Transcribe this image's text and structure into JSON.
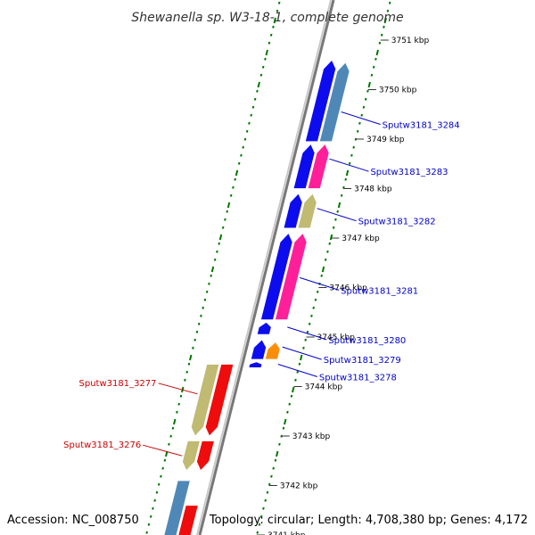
{
  "title": "Shewanella sp. W3-18-1, complete genome",
  "footer": {
    "accession": "Accession: NC_008750",
    "topology": "Topology: circular; Length: 4,708,380 bp; Genes: 4,172"
  },
  "colors": {
    "plus_label": "#0000cc",
    "minus_label": "#cc0000",
    "cds_blue": "#0000ee",
    "cds_steel": "#4682b4",
    "cds_pink": "#ff1493",
    "cds_khaki": "#bdb76b",
    "cds_red": "#ee0000",
    "cds_orange": "#ff8c00",
    "cds_gray": "#a9a9a9",
    "gc_skew": "#007700"
  },
  "ticks": [
    {
      "kbp": 3751,
      "label": "3751 kbp"
    },
    {
      "kbp": 3750,
      "label": "3750 kbp"
    },
    {
      "kbp": 3749,
      "label": "3749 kbp"
    },
    {
      "kbp": 3748,
      "label": "3748 kbp"
    },
    {
      "kbp": 3747,
      "label": "3747 kbp"
    },
    {
      "kbp": 3746,
      "label": "3746 kbp"
    },
    {
      "kbp": 3745,
      "label": "3745 kbp"
    },
    {
      "kbp": 3744,
      "label": "3744 kbp"
    },
    {
      "kbp": 3743,
      "label": "3743 kbp"
    },
    {
      "kbp": 3742,
      "label": "3742 kbp"
    },
    {
      "kbp": 3741,
      "label": "3741 kbp"
    }
  ],
  "features": [
    {
      "id": "f1",
      "strand": "+",
      "track": 1,
      "color": "#0000ee",
      "start_kbp": 3748.95,
      "end_kbp": 3750.6
    },
    {
      "id": "f2",
      "strand": "+",
      "track": 2,
      "color": "#4682b4",
      "start_kbp": 3748.95,
      "end_kbp": 3750.55
    },
    {
      "id": "f3",
      "strand": "+",
      "track": 1,
      "color": "#0000ee",
      "start_kbp": 3748.0,
      "end_kbp": 3748.9
    },
    {
      "id": "f4",
      "strand": "+",
      "track": 2,
      "color": "#ff1493",
      "start_kbp": 3748.0,
      "end_kbp": 3748.9
    },
    {
      "id": "f5",
      "strand": "+",
      "track": 1,
      "color": "#0000ee",
      "start_kbp": 3747.2,
      "end_kbp": 3747.9
    },
    {
      "id": "f6",
      "strand": "+",
      "track": 2,
      "color": "#bdb76b",
      "start_kbp": 3747.2,
      "end_kbp": 3747.9
    },
    {
      "id": "f7",
      "strand": "+",
      "track": 1,
      "color": "#0000ee",
      "start_kbp": 3745.35,
      "end_kbp": 3747.1
    },
    {
      "id": "f8",
      "strand": "+",
      "track": 2,
      "color": "#ff1493",
      "start_kbp": 3745.35,
      "end_kbp": 3747.1
    },
    {
      "id": "f9",
      "strand": "+",
      "track": 1,
      "color": "#0000ee",
      "start_kbp": 3745.05,
      "end_kbp": 3745.3
    },
    {
      "id": "f10",
      "strand": "+",
      "track": 1,
      "color": "#0000ee",
      "start_kbp": 3744.55,
      "end_kbp": 3744.95
    },
    {
      "id": "f11",
      "strand": "+",
      "track": 2,
      "color": "#a9a9a9",
      "start_kbp": 3744.55,
      "end_kbp": 3744.85
    },
    {
      "id": "f12",
      "strand": "+",
      "track": 2,
      "color": "#ff8c00",
      "start_kbp": 3744.55,
      "end_kbp": 3744.9
    },
    {
      "id": "f13",
      "strand": "+",
      "track": 1,
      "color": "#0000ee",
      "start_kbp": 3744.38,
      "end_kbp": 3744.5
    },
    {
      "id": "f14",
      "strand": "-",
      "track": 2,
      "color": "#bdb76b",
      "start_kbp": 3743.0,
      "end_kbp": 3744.45
    },
    {
      "id": "f15",
      "strand": "-",
      "track": 1,
      "color": "#ee0000",
      "start_kbp": 3743.0,
      "end_kbp": 3744.45
    },
    {
      "id": "f16",
      "strand": "-",
      "track": 2,
      "color": "#bdb76b",
      "start_kbp": 3742.3,
      "end_kbp": 3742.9
    },
    {
      "id": "f17",
      "strand": "-",
      "track": 1,
      "color": "#ee0000",
      "start_kbp": 3742.3,
      "end_kbp": 3742.9
    },
    {
      "id": "f18",
      "strand": "-",
      "track": 2,
      "color": "#4682b4",
      "start_kbp": 3740.7,
      "end_kbp": 3742.1
    },
    {
      "id": "f19",
      "strand": "-",
      "track": 1,
      "color": "#ee0000",
      "start_kbp": 3740.7,
      "end_kbp": 3741.6
    }
  ],
  "gene_labels": [
    {
      "name": "Sputw3181_3284",
      "strand": "+",
      "kbp": 3749.55
    },
    {
      "name": "Sputw3181_3283",
      "strand": "+",
      "kbp": 3748.6
    },
    {
      "name": "Sputw3181_3282",
      "strand": "+",
      "kbp": 3747.6
    },
    {
      "name": "Sputw3181_3281",
      "strand": "+",
      "kbp": 3746.2
    },
    {
      "name": "Sputw3181_3280",
      "strand": "+",
      "kbp": 3745.2
    },
    {
      "name": "Sputw3181_3279",
      "strand": "+",
      "kbp": 3744.8
    },
    {
      "name": "Sputw3181_3278",
      "strand": "+",
      "kbp": 3744.45
    },
    {
      "name": "Sputw3181_3277",
      "strand": "-",
      "kbp": 3743.85
    },
    {
      "name": "Sputw3181_3276",
      "strand": "-",
      "kbp": 3742.6
    }
  ]
}
